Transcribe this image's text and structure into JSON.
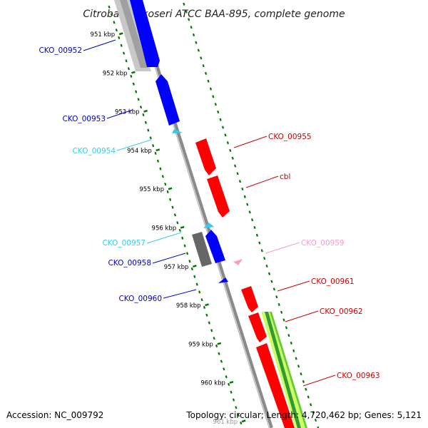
{
  "title": "Citrobacter koseri ATCC BAA-895, complete genome",
  "footer": {
    "accession": "Accession: NC_009792",
    "topology": "Topology: circular; Length: 4,720,462 bp; Genes: 5,121"
  },
  "colors": {
    "forward_gene": "#0000ff",
    "reverse_gene": "#ff0000",
    "forward_rna": "#33ccee",
    "reverse_rna": "#ff99cc",
    "backbone": "#909090",
    "tick": "#007700",
    "pseudo_gene": "#666666",
    "gc_light": "#ccff66",
    "gc_dark": "#339933"
  },
  "ticks": [
    "951 kbp",
    "952 kbp",
    "953 kbp",
    "954 kbp",
    "955 kbp",
    "956 kbp",
    "957 kbp",
    "958 kbp",
    "959 kbp",
    "960 kbp",
    "961 kbp"
  ],
  "labels": {
    "left": [
      {
        "text": "CKO_00952",
        "color": "#0000cc"
      },
      {
        "text": "CKO_00953",
        "color": "#0000cc"
      },
      {
        "text": "CKO_00954",
        "color": "#33ccee"
      },
      {
        "text": "CKO_00957",
        "color": "#33ccee"
      },
      {
        "text": "CKO_00958",
        "color": "#0000cc"
      },
      {
        "text": "CKO_00960",
        "color": "#0000cc"
      }
    ],
    "right": [
      {
        "text": "CKO_00955",
        "color": "#cc0000"
      },
      {
        "text": "cbl",
        "color": "#cc0000"
      },
      {
        "text": "CKO_00959",
        "color": "#ff99cc"
      },
      {
        "text": "CKO_00961",
        "color": "#cc0000"
      },
      {
        "text": "CKO_00962",
        "color": "#cc0000"
      },
      {
        "text": "CKO_00963",
        "color": "#cc0000"
      }
    ]
  }
}
